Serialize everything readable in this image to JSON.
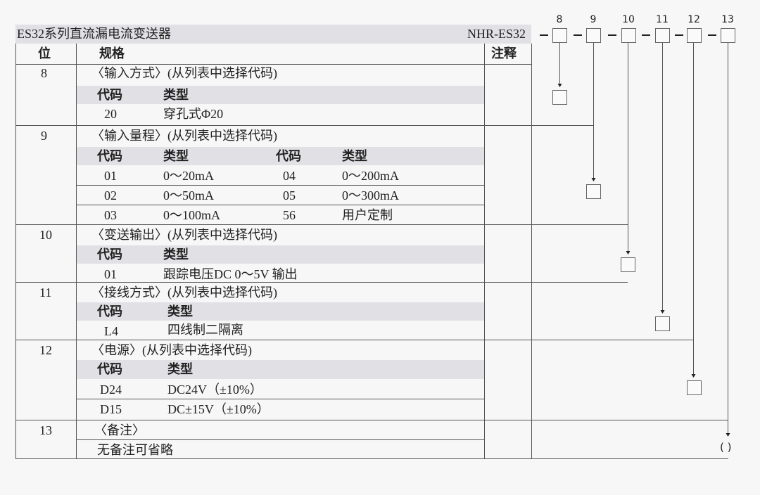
{
  "title": "ES32系列直流漏电流变送器",
  "model": "NHR-ES32",
  "headers": {
    "position": "位",
    "spec": "规格",
    "note": "注释"
  },
  "sub_headers": {
    "code": "代码",
    "type": "类型"
  },
  "code_positions": [
    "8",
    "9",
    "10",
    "11",
    "12",
    "13"
  ],
  "remark_placeholder": "( )",
  "sections": [
    {
      "pos": "8",
      "title": "〈输入方式〉(从列表中选择代码)",
      "rows": [
        [
          "20",
          "穿孔式Φ20"
        ]
      ]
    },
    {
      "pos": "9",
      "title": "〈输入量程〉(从列表中选择代码)",
      "rows": [
        [
          "01",
          "0～20mA",
          "04",
          "0～200mA"
        ],
        [
          "02",
          "0～50mA",
          "05",
          "0～300mA"
        ],
        [
          "03",
          "0～100mA",
          "56",
          "用户定制"
        ]
      ]
    },
    {
      "pos": "10",
      "title": "〈变送输出〉(从列表中选择代码)",
      "rows": [
        [
          "01",
          "跟踪电压DC 0～5V 输出"
        ]
      ]
    },
    {
      "pos": "11",
      "title": "〈接线方式〉(从列表中选择代码)",
      "rows": [
        [
          "L4",
          "四线制二隔离"
        ]
      ]
    },
    {
      "pos": "12",
      "title": "〈电源〉(从列表中选择代码)",
      "rows": [
        [
          "D24",
          "DC24V（±10%）"
        ],
        [
          "D15",
          "DC±15V（±10%）"
        ]
      ]
    },
    {
      "pos": "13",
      "title": "〈备注〉",
      "rows": [
        [
          "无备注可省略"
        ]
      ]
    }
  ],
  "colors": {
    "band": "#e1e1e5",
    "line": "#555555",
    "background": "#f7f7f7"
  }
}
